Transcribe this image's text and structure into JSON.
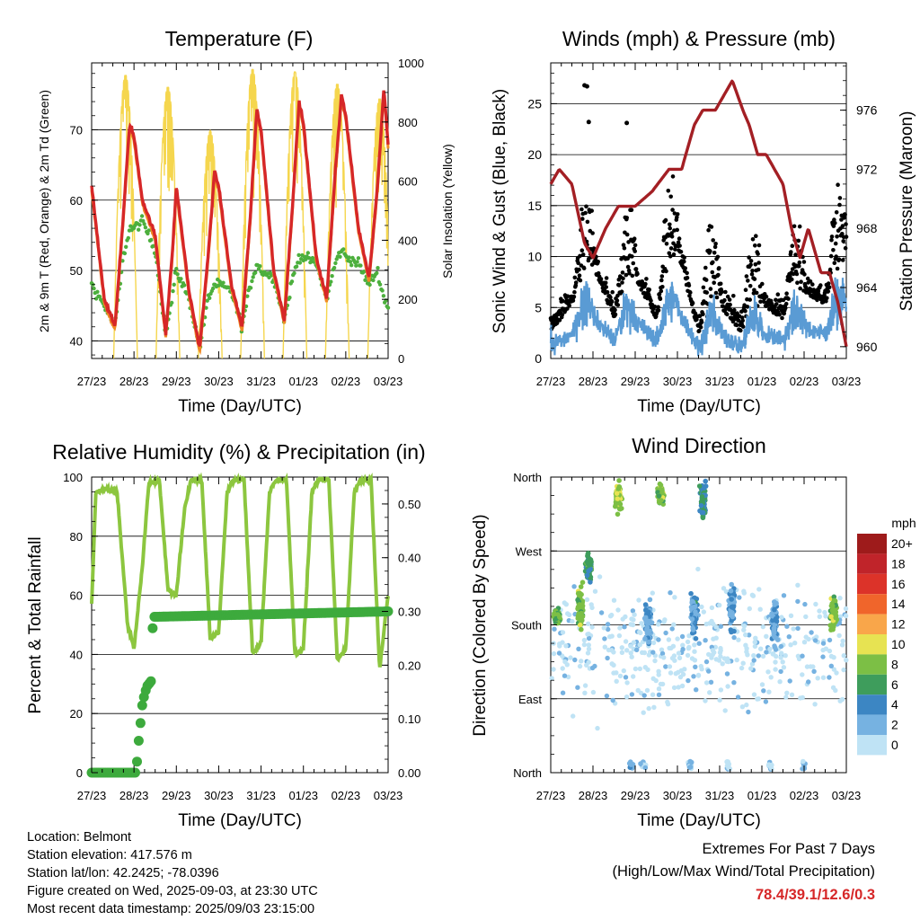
{
  "chart_data": [
    {
      "type": "line",
      "title": "Temperature (F)",
      "xlabel": "Time (Day/UTC)",
      "ylabel": "2m & 9m T (Red, Orange) & 2m Td (Green)",
      "y2label": "Solar Insolation (Yellow)",
      "x_ticks": [
        "27/23",
        "28/23",
        "29/23",
        "30/23",
        "31/23",
        "01/23",
        "02/23",
        "03/23"
      ],
      "y_ticks": [
        40,
        50,
        60,
        70
      ],
      "y2_ticks": [
        0,
        200,
        400,
        600,
        800,
        1000
      ],
      "ylim": [
        37.5,
        79.5
      ],
      "y2lim": [
        0,
        1000
      ],
      "grid": "horizontal",
      "temp_2m": {
        "days": [
          0.0,
          0.3,
          0.55,
          0.75,
          0.9,
          1.0,
          1.2,
          1.5,
          1.75,
          1.9,
          2.0,
          2.3,
          2.55,
          2.75,
          2.9,
          3.0,
          3.3,
          3.55,
          3.75,
          3.9,
          4.0,
          4.3,
          4.55,
          4.75,
          4.9,
          5.0,
          5.3,
          5.55,
          5.75,
          5.9,
          6.0,
          6.3,
          6.55,
          6.75,
          6.9,
          7.0
        ],
        "values": [
          62,
          46,
          42,
          58,
          71,
          69,
          60,
          55,
          41,
          52,
          62,
          47,
          39,
          52,
          64,
          62,
          48,
          42,
          58,
          73,
          70,
          50,
          43,
          60,
          74,
          71,
          52,
          46,
          64,
          75,
          72,
          56,
          49,
          62,
          76,
          68
        ]
      },
      "dewpoint_2m": {
        "days": [
          0.0,
          0.3,
          0.55,
          0.75,
          0.9,
          1.0,
          1.2,
          1.5,
          1.75,
          1.9,
          2.0,
          2.3,
          2.55,
          2.75,
          2.9,
          3.0,
          3.3,
          3.55,
          3.75,
          3.9,
          4.0,
          4.3,
          4.55,
          4.75,
          4.9,
          5.0,
          5.3,
          5.55,
          5.75,
          5.9,
          6.0,
          6.3,
          6.55,
          6.75,
          6.9,
          7.0
        ],
        "values": [
          48,
          45,
          42,
          52,
          56,
          56,
          57,
          53,
          41,
          46,
          50,
          46,
          39,
          46,
          48,
          48,
          47,
          42,
          48,
          51,
          50,
          49,
          43,
          49,
          52,
          52,
          51,
          46,
          51,
          53,
          52,
          51,
          48,
          50,
          46,
          45
        ]
      },
      "solar": {
        "peak_days": [
          0.8,
          1.8,
          2.8,
          3.8,
          4.8,
          5.8,
          6.8
        ],
        "peaks": [
          960,
          920,
          770,
          980,
          970,
          930,
          880
        ]
      }
    },
    {
      "type": "line",
      "title": "Winds (mph) & Pressure (mb)",
      "xlabel": "Time (Day/UTC)",
      "ylabel": "Sonic Wind & Gust (Blue, Black)",
      "y2label": "Station Pressure (Maroon)",
      "x_ticks": [
        "27/23",
        "28/23",
        "29/23",
        "30/23",
        "31/23",
        "01/23",
        "02/23",
        "03/23"
      ],
      "y_ticks": [
        0,
        5,
        10,
        15,
        20,
        25
      ],
      "y2_ticks": [
        960,
        964,
        968,
        972,
        976
      ],
      "ylim": [
        0,
        29
      ],
      "y2lim": [
        959.2,
        979.2
      ],
      "grid": "horizontal",
      "pressure": {
        "days": [
          0.0,
          0.2,
          0.5,
          0.8,
          1.0,
          1.3,
          1.6,
          2.0,
          2.4,
          2.8,
          3.1,
          3.4,
          3.6,
          3.9,
          4.1,
          4.3,
          4.55,
          4.7,
          4.9,
          5.1,
          5.3,
          5.5,
          5.7,
          5.9,
          6.1,
          6.4,
          6.6,
          6.8,
          7.0
        ],
        "values": [
          971,
          972,
          971,
          967,
          966,
          968,
          969.5,
          969.5,
          970.5,
          972,
          972,
          975,
          976,
          976,
          977,
          978,
          976,
          975,
          973,
          973,
          972,
          971,
          968,
          966,
          968,
          965,
          965,
          963,
          960
        ]
      },
      "wind": {
        "days": [
          0.0,
          0.5,
          1.0,
          1.5,
          2.0,
          2.5,
          3.0,
          3.5,
          4.0,
          4.5,
          5.0,
          5.5,
          6.0,
          6.5,
          7.0
        ],
        "values": [
          2,
          4,
          7,
          3,
          6,
          3,
          8,
          2,
          4,
          2,
          4,
          3,
          5,
          4,
          8
        ]
      },
      "gust_outliers": {
        "days": [
          0.8,
          0.86,
          0.9,
          1.8
        ],
        "values": [
          26.8,
          26.7,
          23.2,
          23.1
        ]
      }
    },
    {
      "type": "line",
      "title": "Relative Humidity (%) & Precipitation (in)",
      "xlabel": "Time (Day/UTC)",
      "ylabel": "Percent & Total Rainfall",
      "x_ticks": [
        "27/23",
        "28/23",
        "29/23",
        "30/23",
        "31/23",
        "01/23",
        "02/23",
        "03/23"
      ],
      "y_ticks": [
        0,
        20,
        40,
        60,
        80,
        100
      ],
      "y2_ticks": [
        "0.00",
        "0.10",
        "0.20",
        "0.30",
        "0.40",
        "0.50"
      ],
      "ylim": [
        0,
        100
      ],
      "y2lim": [
        0,
        0.55
      ],
      "grid": "horizontal",
      "humidity": {
        "days": [
          0.0,
          0.1,
          0.3,
          0.6,
          0.85,
          1.0,
          1.2,
          1.35,
          1.6,
          1.8,
          2.0,
          2.2,
          2.35,
          2.6,
          2.8,
          3.0,
          3.2,
          3.35,
          3.6,
          3.8,
          4.0,
          4.2,
          4.35,
          4.6,
          4.8,
          5.0,
          5.2,
          5.35,
          5.6,
          5.8,
          6.0,
          6.2,
          6.35,
          6.6,
          6.8,
          7.0
        ],
        "values": [
          57,
          95,
          96,
          95,
          50,
          42,
          70,
          98,
          99,
          62,
          60,
          90,
          99,
          99,
          45,
          48,
          95,
          99,
          99,
          40,
          44,
          95,
          99,
          99,
          40,
          42,
          95,
          99,
          99,
          38,
          42,
          95,
          99,
          99,
          35,
          60
        ]
      },
      "precipitation": {
        "days": [
          0.0,
          1.05,
          1.1,
          1.2,
          1.3,
          1.4,
          1.45,
          1.5,
          7.0
        ],
        "values": [
          0.0,
          0.0,
          0.05,
          0.13,
          0.16,
          0.17,
          0.29,
          0.29,
          0.3
        ]
      }
    },
    {
      "type": "scatter",
      "title": "Wind Direction",
      "xlabel": "Time (Day/UTC)",
      "ylabel": "Direction (Colored By Speed)",
      "x_ticks": [
        "27/23",
        "28/23",
        "29/23",
        "30/23",
        "31/23",
        "01/23",
        "02/23",
        "03/23"
      ],
      "y_ticks": [
        "North",
        "East",
        "South",
        "West",
        "North"
      ],
      "ylim": [
        0,
        360
      ],
      "grid": "horizontal",
      "legend": {
        "title": "mph",
        "labels": [
          "20+",
          "18",
          "16",
          "14",
          "12",
          "10",
          "8",
          "6",
          "4",
          "2",
          "0"
        ],
        "colors": [
          "#9e1b1b",
          "#c0242a",
          "#dc3329",
          "#f0652b",
          "#f9a64a",
          "#e7e352",
          "#7cbf45",
          "#3e9d5c",
          "#3c86c3",
          "#76b2e1",
          "#bfe3f5"
        ],
        "placement": "right"
      },
      "clusters": [
        {
          "day": 0.15,
          "dir": 190,
          "spread": 15,
          "speed": 7
        },
        {
          "day": 0.7,
          "dir": 200,
          "spread": 40,
          "speed": 8
        },
        {
          "day": 0.9,
          "dir": 250,
          "spread": 25,
          "speed": 6
        },
        {
          "day": 1.6,
          "dir": 335,
          "spread": 25,
          "speed": 9
        },
        {
          "day": 2.6,
          "dir": 340,
          "spread": 20,
          "speed": 8
        },
        {
          "day": 3.6,
          "dir": 330,
          "spread": 30,
          "speed": 5
        },
        {
          "day": 2.3,
          "dir": 185,
          "spread": 40,
          "speed": 3
        },
        {
          "day": 3.4,
          "dir": 195,
          "spread": 40,
          "speed": 3
        },
        {
          "day": 4.3,
          "dir": 200,
          "spread": 40,
          "speed": 3
        },
        {
          "day": 5.3,
          "dir": 185,
          "spread": 40,
          "speed": 3
        },
        {
          "day": 6.7,
          "dir": 195,
          "spread": 30,
          "speed": 8
        }
      ]
    }
  ],
  "info": {
    "location": "Location: Belmont",
    "elevation": "Station elevation: 417.576 m",
    "latlon": "Station lat/lon: 42.2425; -78.0396",
    "created": "Figure created on Wed, 2025-09-03, at 23:30 UTC",
    "latest": "Most recent data timestamp: 2025/09/03 23:15:00"
  },
  "extremes": {
    "title": "Extremes For Past 7 Days",
    "subtitle": "(High/Low/Max Wind/Total Precipitation)",
    "values": "78.4/39.1/12.6/0.3"
  },
  "colors": {
    "temp_2m": "#d62728",
    "temp_9m": "#f08a24",
    "dewpoint": "#4caf3d",
    "solar": "#f5d64e",
    "wind": "#5a9bd4",
    "gust": "#000000",
    "pressure": "#a31f24",
    "humidity": "#8cc63f",
    "precip": "#3daa3d"
  }
}
